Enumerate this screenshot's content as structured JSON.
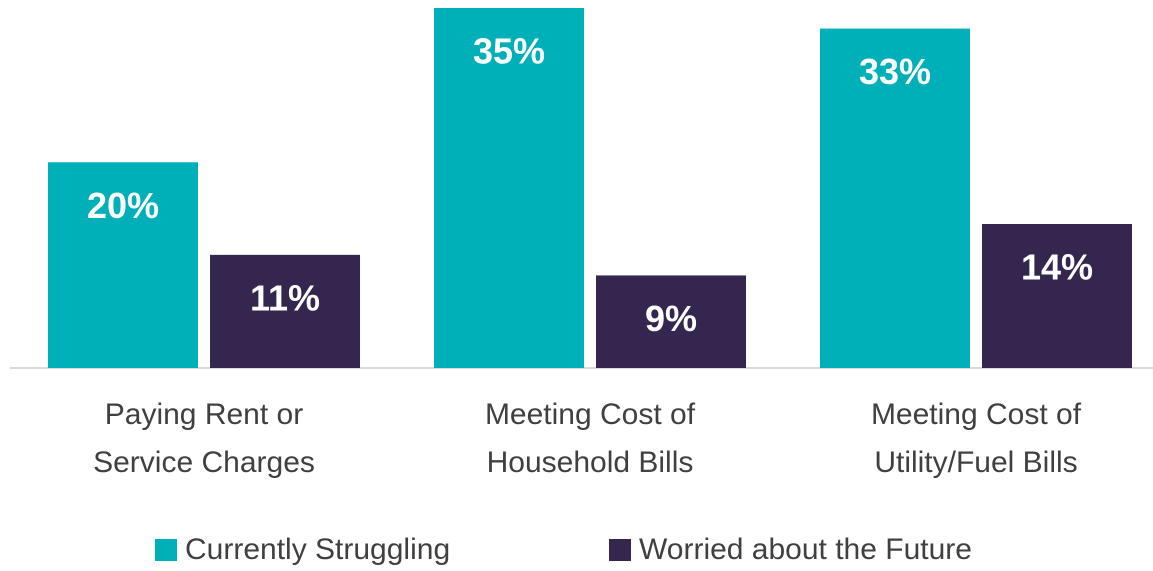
{
  "chart_data": {
    "type": "bar",
    "categories": [
      "Paying Rent or\nService Charges",
      "Meeting Cost of\nHousehold Bills",
      "Meeting Cost of\nUtility/Fuel Bills"
    ],
    "series": [
      {
        "name": "Currently Struggling",
        "color": "#00b0b9",
        "values": [
          20,
          35,
          33
        ],
        "value_labels": [
          "20%",
          "35%",
          "33%"
        ]
      },
      {
        "name": "Worried about the Future",
        "color": "#35264f",
        "values": [
          11,
          9,
          14
        ],
        "value_labels": [
          "11%",
          "9%",
          "14%"
        ]
      }
    ],
    "legend": "bottom"
  }
}
